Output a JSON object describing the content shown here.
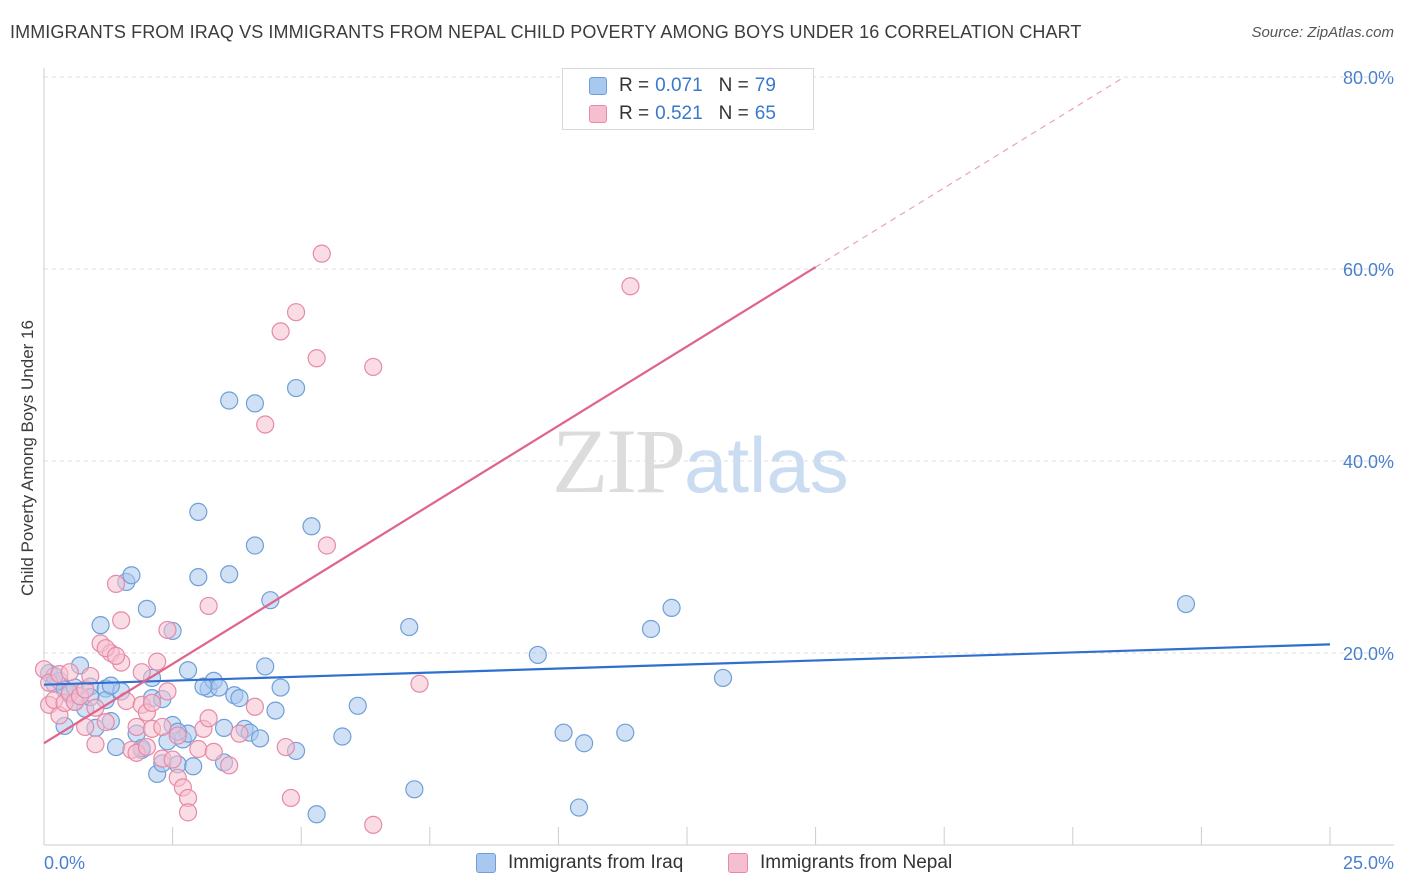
{
  "title": "IMMIGRANTS FROM IRAQ VS IMMIGRANTS FROM NEPAL CHILD POVERTY AMONG BOYS UNDER 16 CORRELATION CHART",
  "source": "Source: ZipAtlas.com",
  "watermark": {
    "zip": "ZIP",
    "atlas": "atlas"
  },
  "legend": {
    "rows": [
      {
        "r_label": "R = ",
        "r_value": "0.071",
        "n_label": "N = ",
        "n_value": "79",
        "color": "#a9c8ef",
        "border": "#6f9fd8"
      },
      {
        "r_label": "R = ",
        "r_value": "0.521",
        "n_label": "N = ",
        "n_value": "65",
        "color": "#f5bfd0",
        "border": "#e68aa8"
      }
    ]
  },
  "bottom_legend": [
    {
      "label": "Immigrants from Iraq",
      "color": "#a9c8ef",
      "border": "#6f9fd8"
    },
    {
      "label": "Immigrants from Nepal",
      "color": "#f5bfd0",
      "border": "#e68aa8"
    }
  ],
  "chart_data": {
    "type": "scatter",
    "title": "IMMIGRANTS FROM IRAQ VS IMMIGRANTS FROM NEPAL CHILD POVERTY AMONG BOYS UNDER 16 CORRELATION CHART",
    "xlabel": "",
    "ylabel": "Child Poverty Among Boys Under 16",
    "xlim": [
      0,
      25
    ],
    "ylim": [
      0,
      80
    ],
    "x_tick_labels": [
      "0.0%",
      "25.0%"
    ],
    "y_ticks": [
      20,
      40,
      60,
      80
    ],
    "y_tick_labels": [
      "20.0%",
      "40.0%",
      "60.0%",
      "80.0%"
    ],
    "grid": true,
    "legend_placement": "top-center",
    "series": [
      {
        "name": "Immigrants from Iraq",
        "color": "#6f9fd8",
        "fill": "#a9c8ef",
        "trend": {
          "x": [
            0,
            25
          ],
          "y": [
            16.7,
            20.9
          ],
          "color": "#2e6fcf"
        },
        "points": [
          [
            0.1,
            17.9
          ],
          [
            0.2,
            16.8
          ],
          [
            0.3,
            17.1
          ],
          [
            0.4,
            12.4
          ],
          [
            0.4,
            16.2
          ],
          [
            0.5,
            15.7
          ],
          [
            0.6,
            16.4
          ],
          [
            0.7,
            18.7
          ],
          [
            0.8,
            14.2
          ],
          [
            0.9,
            16.5
          ],
          [
            1.0,
            12.2
          ],
          [
            1.1,
            22.9
          ],
          [
            1.2,
            16.3
          ],
          [
            1.2,
            15.1
          ],
          [
            1.3,
            12.9
          ],
          [
            1.4,
            10.2
          ],
          [
            1.5,
            16.0
          ],
          [
            1.6,
            27.4
          ],
          [
            1.7,
            28.1
          ],
          [
            1.8,
            11.6
          ],
          [
            1.9,
            9.9
          ],
          [
            2.0,
            24.6
          ],
          [
            2.1,
            15.3
          ],
          [
            2.1,
            17.4
          ],
          [
            2.2,
            7.4
          ],
          [
            2.3,
            8.5
          ],
          [
            2.4,
            10.8
          ],
          [
            2.5,
            12.5
          ],
          [
            2.5,
            22.3
          ],
          [
            2.6,
            8.4
          ],
          [
            2.7,
            11.0
          ],
          [
            2.8,
            11.6
          ],
          [
            2.8,
            18.2
          ],
          [
            2.9,
            8.2
          ],
          [
            3.0,
            27.9
          ],
          [
            3.0,
            34.7
          ],
          [
            3.2,
            16.3
          ],
          [
            3.3,
            17.1
          ],
          [
            3.4,
            16.4
          ],
          [
            3.5,
            12.2
          ],
          [
            3.5,
            8.6
          ],
          [
            3.6,
            46.3
          ],
          [
            3.6,
            28.2
          ],
          [
            3.7,
            15.6
          ],
          [
            3.8,
            15.3
          ],
          [
            3.9,
            12.1
          ],
          [
            4.0,
            11.7
          ],
          [
            4.1,
            46.0
          ],
          [
            4.1,
            31.2
          ],
          [
            4.2,
            11.1
          ],
          [
            4.3,
            18.6
          ],
          [
            4.4,
            25.5
          ],
          [
            4.5,
            14.0
          ],
          [
            4.6,
            16.4
          ],
          [
            4.9,
            47.6
          ],
          [
            4.9,
            9.8
          ],
          [
            5.2,
            33.2
          ],
          [
            5.3,
            3.2
          ],
          [
            5.8,
            11.3
          ],
          [
            6.1,
            14.5
          ],
          [
            7.1,
            22.7
          ],
          [
            7.2,
            5.8
          ],
          [
            9.6,
            19.8
          ],
          [
            10.1,
            11.7
          ],
          [
            10.4,
            3.9
          ],
          [
            10.5,
            10.6
          ],
          [
            11.3,
            11.7
          ],
          [
            11.8,
            22.5
          ],
          [
            12.2,
            24.7
          ],
          [
            13.2,
            17.4
          ],
          [
            22.2,
            25.1
          ],
          [
            0.2,
            17.6
          ],
          [
            0.6,
            14.9
          ],
          [
            1.3,
            16.6
          ],
          [
            1.9,
            10.1
          ],
          [
            2.6,
            11.8
          ],
          [
            3.1,
            16.5
          ],
          [
            0.9,
            15.4
          ],
          [
            2.3,
            15.2
          ]
        ]
      },
      {
        "name": "Immigrants from Nepal",
        "color": "#e68aa8",
        "fill": "#f5bfd0",
        "trend": {
          "x": [
            0,
            15
          ],
          "y": [
            10.6,
            60.2
          ],
          "color": "#e0648a",
          "dashed_extension": {
            "x": [
              15,
              21
            ],
            "y": [
              60.2,
              80
            ]
          }
        },
        "points": [
          [
            0.0,
            18.3
          ],
          [
            0.1,
            16.9
          ],
          [
            0.1,
            14.6
          ],
          [
            0.2,
            15.1
          ],
          [
            0.3,
            13.5
          ],
          [
            0.3,
            17.8
          ],
          [
            0.4,
            14.8
          ],
          [
            0.5,
            15.9
          ],
          [
            0.6,
            14.9
          ],
          [
            0.7,
            15.5
          ],
          [
            0.8,
            12.3
          ],
          [
            0.8,
            16.2
          ],
          [
            0.9,
            17.6
          ],
          [
            1.0,
            10.5
          ],
          [
            1.0,
            14.3
          ],
          [
            1.1,
            21.0
          ],
          [
            1.2,
            12.8
          ],
          [
            1.3,
            20.0
          ],
          [
            1.4,
            27.2
          ],
          [
            1.5,
            19.0
          ],
          [
            1.5,
            23.4
          ],
          [
            1.6,
            15.0
          ],
          [
            1.7,
            9.9
          ],
          [
            1.8,
            9.6
          ],
          [
            1.8,
            12.3
          ],
          [
            1.9,
            18.0
          ],
          [
            1.9,
            14.6
          ],
          [
            2.0,
            10.2
          ],
          [
            2.0,
            13.8
          ],
          [
            2.1,
            12.1
          ],
          [
            2.2,
            19.1
          ],
          [
            2.3,
            9.0
          ],
          [
            2.3,
            12.3
          ],
          [
            2.4,
            16.0
          ],
          [
            2.4,
            22.4
          ],
          [
            2.5,
            8.9
          ],
          [
            2.6,
            7.0
          ],
          [
            2.6,
            11.4
          ],
          [
            2.7,
            6.0
          ],
          [
            2.8,
            4.9
          ],
          [
            2.8,
            3.4
          ],
          [
            3.0,
            10.0
          ],
          [
            3.1,
            12.1
          ],
          [
            3.2,
            13.2
          ],
          [
            3.2,
            24.9
          ],
          [
            3.3,
            9.7
          ],
          [
            3.6,
            8.3
          ],
          [
            3.8,
            11.6
          ],
          [
            4.1,
            14.4
          ],
          [
            4.3,
            43.8
          ],
          [
            4.6,
            53.5
          ],
          [
            4.7,
            10.2
          ],
          [
            4.8,
            4.9
          ],
          [
            4.9,
            55.5
          ],
          [
            5.3,
            50.7
          ],
          [
            5.4,
            61.6
          ],
          [
            5.5,
            31.2
          ],
          [
            6.4,
            2.1
          ],
          [
            6.4,
            49.8
          ],
          [
            7.3,
            16.8
          ],
          [
            11.4,
            58.2
          ],
          [
            1.2,
            20.5
          ],
          [
            0.5,
            18.0
          ],
          [
            2.1,
            14.8
          ],
          [
            1.4,
            19.7
          ]
        ]
      }
    ]
  }
}
